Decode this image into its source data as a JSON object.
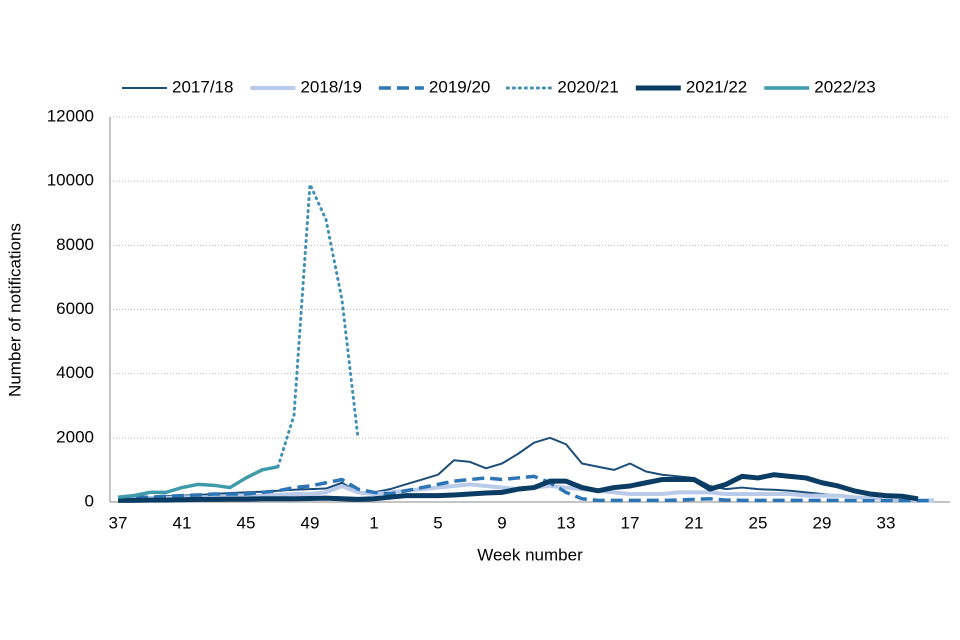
{
  "chart_data": {
    "type": "line",
    "xlabel": "Week number",
    "ylabel": "Number of notifications",
    "categories": [
      "37",
      null,
      null,
      null,
      "41",
      null,
      null,
      null,
      "45",
      null,
      null,
      null,
      "49",
      null,
      null,
      null,
      "1",
      null,
      null,
      null,
      "5",
      null,
      null,
      null,
      "9",
      null,
      null,
      null,
      "13",
      null,
      null,
      null,
      "17",
      null,
      null,
      null,
      "21",
      null,
      null,
      null,
      "25",
      null,
      null,
      null,
      "29",
      null,
      null,
      null,
      "33",
      null,
      null,
      null
    ],
    "ylim": [
      0,
      12000
    ],
    "yticks": [
      0,
      2000,
      4000,
      6000,
      8000,
      10000,
      12000
    ],
    "grid": true,
    "legend": "top",
    "series": [
      {
        "name": "2017/18",
        "color": "#1d4e79",
        "dash": "solid",
        "width": 2,
        "values": [
          100,
          120,
          150,
          180,
          200,
          220,
          250,
          280,
          300,
          320,
          350,
          380,
          400,
          420,
          600,
          300,
          300,
          400,
          550,
          700,
          850,
          1300,
          1250,
          1050,
          1200,
          1500,
          1850,
          2000,
          1800,
          1200,
          1100,
          1000,
          1200,
          950,
          850,
          800,
          750,
          500,
          400,
          450,
          400,
          380,
          350,
          300,
          250,
          200,
          150,
          100,
          80,
          60,
          50,
          40
        ]
      },
      {
        "name": "2018/19",
        "color": "#b9cbe9",
        "dash": "solid",
        "width": 4,
        "values": [
          100,
          100,
          120,
          120,
          150,
          150,
          150,
          180,
          200,
          200,
          220,
          250,
          250,
          300,
          500,
          300,
          250,
          300,
          350,
          400,
          450,
          500,
          550,
          500,
          450,
          400,
          450,
          500,
          450,
          400,
          350,
          300,
          250,
          250,
          250,
          300,
          300,
          300,
          250,
          250,
          250,
          250,
          250,
          200,
          200,
          200,
          150,
          120,
          100,
          80,
          60,
          50
        ]
      },
      {
        "name": "2019/20",
        "color": "#2e75b6",
        "dash": "dashed",
        "width": 3.5,
        "values": [
          150,
          150,
          150,
          180,
          200,
          220,
          250,
          250,
          250,
          300,
          350,
          450,
          500,
          600,
          700,
          400,
          300,
          250,
          350,
          450,
          550,
          650,
          700,
          750,
          700,
          750,
          800,
          600,
          300,
          100,
          50,
          50,
          50,
          50,
          50,
          60,
          80,
          100,
          60,
          50,
          50,
          50,
          50,
          50,
          50,
          50,
          40,
          40,
          40,
          40,
          40,
          40
        ]
      },
      {
        "name": "2020/21",
        "color": "#3f8fb5",
        "dash": "dotted",
        "width": 3,
        "values": [
          null,
          null,
          null,
          null,
          null,
          null,
          null,
          null,
          null,
          null,
          1100,
          2700,
          9900,
          8800,
          6300,
          2000,
          null,
          null,
          null,
          null,
          null,
          null,
          null,
          null,
          null,
          null,
          null,
          null,
          null,
          null,
          null,
          null,
          null,
          null,
          null,
          null,
          null,
          null,
          null,
          null,
          null,
          null,
          null,
          null,
          null,
          null,
          null,
          null,
          null,
          null,
          null,
          null
        ]
      },
      {
        "name": "2021/22",
        "color": "#0b3c63",
        "dash": "solid",
        "width": 5,
        "values": [
          50,
          50,
          60,
          60,
          70,
          80,
          80,
          90,
          90,
          100,
          100,
          100,
          110,
          120,
          100,
          80,
          100,
          150,
          200,
          200,
          200,
          220,
          250,
          280,
          300,
          400,
          450,
          650,
          650,
          450,
          350,
          450,
          500,
          600,
          700,
          700,
          700,
          400,
          550,
          800,
          750,
          850,
          800,
          750,
          600,
          500,
          350,
          250,
          200,
          180,
          100,
          null
        ]
      },
      {
        "name": "2022/23",
        "color": "#3f9aaa",
        "dash": "solid",
        "width": 3.5,
        "values": [
          150,
          200,
          300,
          300,
          450,
          550,
          520,
          450,
          750,
          1000,
          1100,
          null,
          null,
          null,
          null,
          null,
          null,
          null,
          null,
          null,
          null,
          null,
          null,
          null,
          null,
          null,
          null,
          null,
          null,
          null,
          null,
          null,
          null,
          null,
          null,
          null,
          null,
          null,
          null,
          null,
          null,
          null,
          null,
          null,
          null,
          null,
          null,
          null,
          null,
          null,
          null,
          null
        ]
      }
    ]
  }
}
